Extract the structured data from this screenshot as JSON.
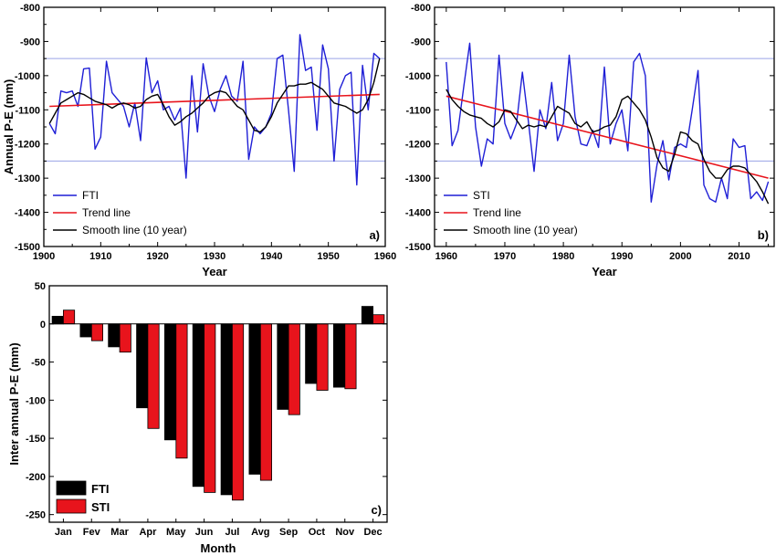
{
  "chart_data": [
    {
      "id": "a",
      "type": "line",
      "panel_label": "a)",
      "xlabel": "Year",
      "ylabel": "Annual P-E (mm)",
      "xlim": [
        1900,
        1960
      ],
      "ylim": [
        -1500,
        -800
      ],
      "xticks": [
        1900,
        1910,
        1920,
        1930,
        1940,
        1950,
        1960
      ],
      "yticks": [
        -800,
        -900,
        -1000,
        -1100,
        -1200,
        -1300,
        -1400,
        -1500
      ],
      "hlines": [
        -950,
        -1250
      ],
      "legend_position": "bottom-left",
      "series": [
        {
          "name": "FTI",
          "color": "#1f1fd6",
          "x": [
            1901,
            1902,
            1903,
            1904,
            1905,
            1906,
            1907,
            1908,
            1909,
            1910,
            1911,
            1912,
            1913,
            1914,
            1915,
            1916,
            1917,
            1918,
            1919,
            1920,
            1921,
            1922,
            1923,
            1924,
            1925,
            1926,
            1927,
            1928,
            1929,
            1930,
            1931,
            1932,
            1933,
            1934,
            1935,
            1936,
            1937,
            1938,
            1939,
            1940,
            1941,
            1942,
            1943,
            1944,
            1945,
            1946,
            1947,
            1948,
            1949,
            1950,
            1951,
            1952,
            1953,
            1954,
            1955,
            1956,
            1957,
            1958,
            1959
          ],
          "y": [
            -1140,
            -1170,
            -1045,
            -1050,
            -1045,
            -1090,
            -980,
            -978,
            -1215,
            -1180,
            -958,
            -1050,
            -1070,
            -1090,
            -1150,
            -1080,
            -1190,
            -948,
            -1050,
            -1015,
            -1100,
            -1090,
            -1130,
            -1095,
            -1300,
            -1000,
            -1165,
            -965,
            -1060,
            -1105,
            -1040,
            -1000,
            -1060,
            -1075,
            -958,
            -1245,
            -1150,
            -1170,
            -1150,
            -1110,
            -950,
            -940,
            -1100,
            -1280,
            -880,
            -985,
            -975,
            -1160,
            -910,
            -980,
            -1250,
            -1040,
            -1000,
            -990,
            -1320,
            -970,
            -1100,
            -935,
            -950
          ]
        },
        {
          "name": "Trend line",
          "color": "#e8141c",
          "x": [
            1901,
            1959
          ],
          "y": [
            -1090,
            -1055
          ]
        },
        {
          "name": "Smooth line (10 year)",
          "color": "#000000",
          "x": [
            1901,
            1902,
            1903,
            1904,
            1905,
            1906,
            1907,
            1908,
            1909,
            1910,
            1911,
            1912,
            1913,
            1914,
            1915,
            1916,
            1917,
            1918,
            1919,
            1920,
            1921,
            1922,
            1923,
            1924,
            1925,
            1926,
            1927,
            1928,
            1929,
            1930,
            1931,
            1932,
            1933,
            1934,
            1935,
            1936,
            1937,
            1938,
            1939,
            1940,
            1941,
            1942,
            1943,
            1944,
            1945,
            1946,
            1947,
            1948,
            1949,
            1950,
            1951,
            1952,
            1953,
            1954,
            1955,
            1956,
            1957,
            1958,
            1959
          ],
          "y": [
            -1140,
            -1110,
            -1080,
            -1070,
            -1060,
            -1050,
            -1055,
            -1065,
            -1075,
            -1080,
            -1085,
            -1095,
            -1085,
            -1080,
            -1085,
            -1095,
            -1090,
            -1070,
            -1060,
            -1055,
            -1085,
            -1120,
            -1145,
            -1135,
            -1120,
            -1110,
            -1095,
            -1080,
            -1060,
            -1050,
            -1045,
            -1050,
            -1070,
            -1090,
            -1100,
            -1130,
            -1160,
            -1165,
            -1150,
            -1120,
            -1080,
            -1055,
            -1030,
            -1030,
            -1025,
            -1025,
            -1020,
            -1030,
            -1040,
            -1060,
            -1080,
            -1085,
            -1090,
            -1100,
            -1110,
            -1100,
            -1070,
            -1020,
            -950
          ]
        }
      ]
    },
    {
      "id": "b",
      "type": "line",
      "panel_label": "b)",
      "xlabel": "Year",
      "ylabel": "",
      "xlim": [
        1958,
        2016
      ],
      "ylim": [
        -1500,
        -800
      ],
      "xticks": [
        1960,
        1970,
        1980,
        1990,
        2000,
        2010
      ],
      "yticks": [
        -800,
        -900,
        -1000,
        -1100,
        -1200,
        -1300,
        -1400,
        -1500
      ],
      "hlines": [
        -950,
        -1250
      ],
      "legend_position": "bottom-left",
      "series": [
        {
          "name": "STI",
          "color": "#1f1fd6",
          "x": [
            1960,
            1961,
            1962,
            1963,
            1964,
            1965,
            1966,
            1967,
            1968,
            1969,
            1970,
            1971,
            1972,
            1973,
            1974,
            1975,
            1976,
            1977,
            1978,
            1979,
            1980,
            1981,
            1982,
            1983,
            1984,
            1985,
            1986,
            1987,
            1988,
            1989,
            1990,
            1991,
            1992,
            1993,
            1994,
            1995,
            1996,
            1997,
            1998,
            1999,
            2000,
            2001,
            2002,
            2003,
            2004,
            2005,
            2006,
            2007,
            2008,
            2009,
            2010,
            2011,
            2012,
            2013,
            2014,
            2015
          ],
          "y": [
            -960,
            -1205,
            -1160,
            -1030,
            -905,
            -1150,
            -1265,
            -1185,
            -1200,
            -940,
            -1140,
            -1185,
            -1140,
            -990,
            -1130,
            -1280,
            -1100,
            -1155,
            -1020,
            -1190,
            -1140,
            -940,
            -1120,
            -1200,
            -1205,
            -1160,
            -1210,
            -975,
            -1200,
            -1140,
            -1100,
            -1220,
            -960,
            -935,
            -1000,
            -1370,
            -1260,
            -1190,
            -1305,
            -1210,
            -1200,
            -1210,
            -1100,
            -985,
            -1320,
            -1360,
            -1370,
            -1300,
            -1360,
            -1185,
            -1210,
            -1205,
            -1360,
            -1340,
            -1365,
            -1310
          ]
        },
        {
          "name": "Trend line",
          "color": "#e8141c",
          "x": [
            1960,
            2015
          ],
          "y": [
            -1060,
            -1300
          ]
        },
        {
          "name": "Smooth line (10 year)",
          "color": "#000000",
          "x": [
            1960,
            1961,
            1962,
            1963,
            1964,
            1965,
            1966,
            1967,
            1968,
            1969,
            1970,
            1971,
            1972,
            1973,
            1974,
            1975,
            1976,
            1977,
            1978,
            1979,
            1980,
            1981,
            1982,
            1983,
            1984,
            1985,
            1986,
            1987,
            1988,
            1989,
            1990,
            1991,
            1992,
            1993,
            1994,
            1995,
            1996,
            1997,
            1998,
            1999,
            2000,
            2001,
            2002,
            2003,
            2004,
            2005,
            2006,
            2007,
            2008,
            2009,
            2010,
            2011,
            2012,
            2013,
            2014,
            2015
          ],
          "y": [
            -1040,
            -1070,
            -1090,
            -1105,
            -1115,
            -1120,
            -1125,
            -1140,
            -1150,
            -1135,
            -1100,
            -1105,
            -1130,
            -1155,
            -1145,
            -1150,
            -1145,
            -1150,
            -1120,
            -1090,
            -1100,
            -1110,
            -1140,
            -1150,
            -1135,
            -1165,
            -1160,
            -1150,
            -1145,
            -1120,
            -1070,
            -1060,
            -1080,
            -1100,
            -1130,
            -1180,
            -1240,
            -1270,
            -1280,
            -1230,
            -1165,
            -1170,
            -1190,
            -1200,
            -1245,
            -1280,
            -1300,
            -1300,
            -1275,
            -1265,
            -1265,
            -1270,
            -1290,
            -1310,
            -1340,
            -1375
          ]
        }
      ]
    },
    {
      "id": "c",
      "type": "bar",
      "panel_label": "c)",
      "xlabel": "Month",
      "ylabel": "Inter annual P-E (mm)",
      "ylim": [
        -260,
        50
      ],
      "yticks": [
        50,
        0,
        -50,
        -100,
        -150,
        -200,
        -250
      ],
      "legend_position": "bottom-left",
      "categories": [
        "Jan",
        "Fev",
        "Mar",
        "Apr",
        "May",
        "Jun",
        "Jul",
        "Avg",
        "Sep",
        "Oct",
        "Nov",
        "Dec"
      ],
      "series": [
        {
          "name": "FTI",
          "color": "#000000",
          "values": [
            10,
            -17,
            -30,
            -110,
            -152,
            -213,
            -224,
            -197,
            -112,
            -78,
            -83,
            23
          ]
        },
        {
          "name": "STI",
          "color": "#e8141c",
          "values": [
            18,
            -22,
            -37,
            -137,
            -176,
            -221,
            -231,
            -205,
            -119,
            -87,
            -85,
            12
          ]
        }
      ]
    }
  ]
}
